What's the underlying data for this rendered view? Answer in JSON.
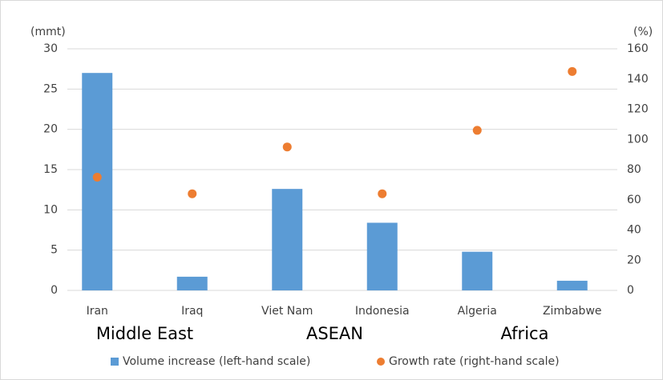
{
  "chart_data": {
    "type": "bar",
    "y_axis_label": "(mmt)",
    "y2_axis_label": "(%)",
    "categories": [
      "Iran",
      "Iraq",
      "Viet Nam",
      "Indonesia",
      "Algeria",
      "Zimbabwe"
    ],
    "groups": [
      "Middle East",
      "ASEAN",
      "Africa"
    ],
    "series": [
      {
        "name": "Volume increase (left-hand scale)",
        "type": "bar",
        "color": "#5b9bd5",
        "values": [
          27,
          1.7,
          12.6,
          8.4,
          4.8,
          1.2
        ]
      },
      {
        "name": "Growth rate (right-hand scale)",
        "type": "scatter",
        "axis": "y2",
        "color": "#ed7d31",
        "values": [
          75,
          64,
          95,
          64,
          106,
          145
        ]
      }
    ],
    "ylim": [
      0,
      30
    ],
    "yticks": [
      0,
      5,
      10,
      15,
      20,
      25,
      30
    ],
    "y2lim": [
      0,
      160
    ],
    "y2ticks": [
      0,
      20,
      40,
      60,
      80,
      100,
      120,
      140,
      160
    ],
    "grid": true
  }
}
